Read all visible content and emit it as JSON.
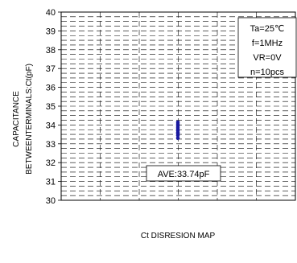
{
  "chart_data": {
    "type": "scatter",
    "title": "",
    "xlabel": "Ct DISRESION MAP",
    "ylabel_lines": [
      "CAPACITANCE",
      "BETWEENTERMINALS:Ct(pF)"
    ],
    "ylim": [
      30,
      40
    ],
    "yticks": [
      30,
      31,
      32,
      33,
      34,
      35,
      36,
      37,
      38,
      39,
      40
    ],
    "grid": true,
    "series": [
      {
        "values": [
          33.3,
          33.45,
          33.55,
          33.6,
          33.7,
          33.75,
          33.85,
          33.95,
          34.05,
          34.15
        ],
        "color": "#1a1aa0"
      }
    ],
    "conditions": [
      "Ta=25℃",
      "f=1MHz",
      "VR=0V",
      "n=10pcs"
    ],
    "average_label": "AVE:33.74pF"
  }
}
